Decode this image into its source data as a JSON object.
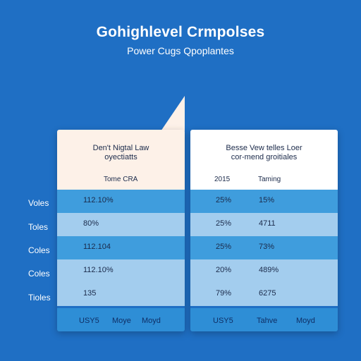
{
  "header": {
    "title": "Gohighlevel Crmpolses",
    "subtitle": "Power Cugs Qpoplantes"
  },
  "row_labels": [
    "Voles",
    "Toles",
    "Coles",
    "Coles",
    "Tioles"
  ],
  "left_panel": {
    "title_line1": "Den't Nigtal Law",
    "title_line2": "oyectiatts",
    "column_header": "Tome CRA",
    "values": [
      "112.10%",
      "80%",
      "112.104",
      "112.10%",
      "135"
    ],
    "footer": [
      "USY5",
      "Moye",
      "Moyd"
    ]
  },
  "right_panel": {
    "title_line1": "Besse Vew telles Loer",
    "title_line2": "cor-mend groitiales",
    "col1_header": "2015",
    "col2_header": "Taming",
    "col1_values": [
      "25%",
      "25%",
      "25%",
      "20%",
      "79%"
    ],
    "col2_values": [
      "15%",
      "4711",
      "73%",
      "489%",
      "6275"
    ],
    "footer": [
      "USY5",
      "Tahve",
      "Moyd"
    ]
  },
  "colors": {
    "background": "#1f6fc4",
    "row_dark": "#3f9ddd",
    "row_light": "#a3cdee",
    "footer": "#2e8ed6"
  }
}
